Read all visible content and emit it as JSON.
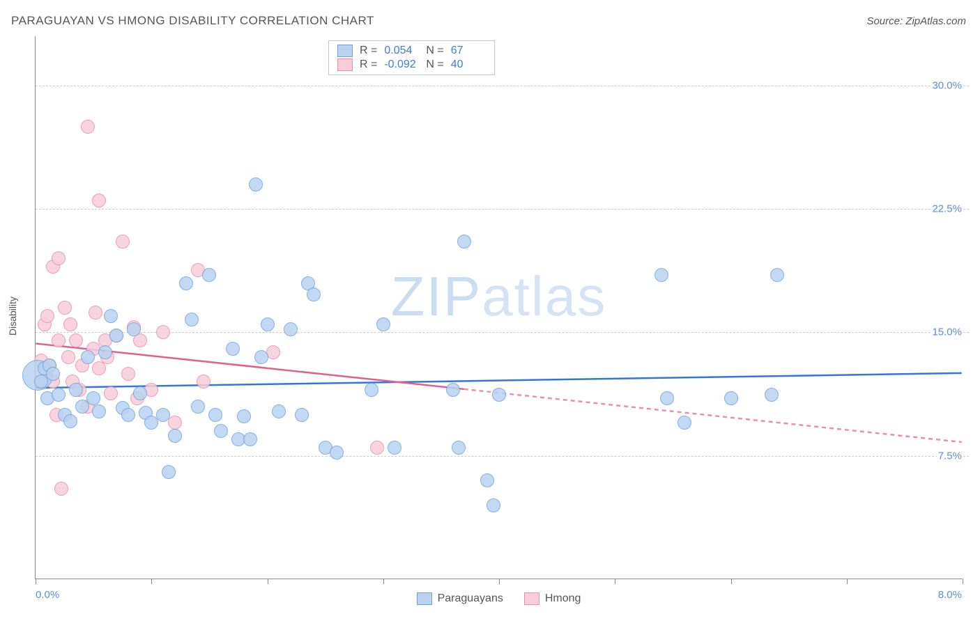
{
  "header": {
    "title": "PARAGUAYAN VS HMONG DISABILITY CORRELATION CHART",
    "source": "Source: ZipAtlas.com"
  },
  "ylabel": "Disability",
  "watermark": {
    "bold": "ZIP",
    "light": "atlas"
  },
  "chart": {
    "xlim": [
      0.0,
      8.0
    ],
    "ylim": [
      0.0,
      33.0
    ],
    "x_tick_positions": [
      0.0,
      1.0,
      2.0,
      3.0,
      4.0,
      5.0,
      6.0,
      7.0,
      8.0
    ],
    "x_tick_labels_shown": {
      "left": "0.0%",
      "right": "8.0%"
    },
    "y_gridlines": [
      7.5,
      15.0,
      22.5,
      30.0
    ],
    "y_tick_labels": [
      "7.5%",
      "15.0%",
      "22.5%",
      "30.0%"
    ],
    "background_color": "#ffffff",
    "grid_color": "#cccccc",
    "axis_color": "#888888",
    "label_color": "#5b8fd6",
    "point_radius": 10,
    "point_border_width": 1.2,
    "series": [
      {
        "name": "Paraguayans",
        "fill": "#b9d2f0",
        "stroke": "#6fa3e0",
        "line_color": "#2f78d6",
        "R": "0.054",
        "N": "67",
        "trend": {
          "x1": 0.0,
          "y1": 11.6,
          "x2": 8.0,
          "y2": 12.5,
          "solid_to_x": 8.0
        },
        "points": [
          {
            "x": 0.02,
            "y": 12.4,
            "r": 22
          },
          {
            "x": 0.05,
            "y": 12.0
          },
          {
            "x": 0.08,
            "y": 12.8
          },
          {
            "x": 0.1,
            "y": 11.0
          },
          {
            "x": 0.12,
            "y": 13.0
          },
          {
            "x": 0.15,
            "y": 12.5
          },
          {
            "x": 0.2,
            "y": 11.2
          },
          {
            "x": 0.25,
            "y": 10.0
          },
          {
            "x": 0.3,
            "y": 9.6
          },
          {
            "x": 0.35,
            "y": 11.5
          },
          {
            "x": 0.4,
            "y": 10.5
          },
          {
            "x": 0.45,
            "y": 13.5
          },
          {
            "x": 0.5,
            "y": 11.0
          },
          {
            "x": 0.55,
            "y": 10.2
          },
          {
            "x": 0.6,
            "y": 13.8
          },
          {
            "x": 0.65,
            "y": 16.0
          },
          {
            "x": 0.7,
            "y": 14.8
          },
          {
            "x": 0.75,
            "y": 10.4
          },
          {
            "x": 0.8,
            "y": 10.0
          },
          {
            "x": 0.85,
            "y": 15.2
          },
          {
            "x": 0.9,
            "y": 11.3
          },
          {
            "x": 0.95,
            "y": 10.1
          },
          {
            "x": 1.0,
            "y": 9.5
          },
          {
            "x": 1.1,
            "y": 10.0
          },
          {
            "x": 1.15,
            "y": 6.5
          },
          {
            "x": 1.2,
            "y": 8.7
          },
          {
            "x": 1.3,
            "y": 18.0
          },
          {
            "x": 1.35,
            "y": 15.8
          },
          {
            "x": 1.4,
            "y": 10.5
          },
          {
            "x": 1.5,
            "y": 18.5
          },
          {
            "x": 1.55,
            "y": 10.0
          },
          {
            "x": 1.6,
            "y": 9.0
          },
          {
            "x": 1.7,
            "y": 14.0
          },
          {
            "x": 1.75,
            "y": 8.5
          },
          {
            "x": 1.8,
            "y": 9.9
          },
          {
            "x": 1.85,
            "y": 8.5
          },
          {
            "x": 1.9,
            "y": 24.0
          },
          {
            "x": 1.95,
            "y": 13.5
          },
          {
            "x": 2.0,
            "y": 15.5
          },
          {
            "x": 2.1,
            "y": 10.2
          },
          {
            "x": 2.2,
            "y": 15.2
          },
          {
            "x": 2.3,
            "y": 10.0
          },
          {
            "x": 2.35,
            "y": 18.0
          },
          {
            "x": 2.4,
            "y": 17.3
          },
          {
            "x": 2.5,
            "y": 8.0
          },
          {
            "x": 2.6,
            "y": 7.7
          },
          {
            "x": 2.9,
            "y": 11.5
          },
          {
            "x": 3.0,
            "y": 15.5
          },
          {
            "x": 3.1,
            "y": 8.0
          },
          {
            "x": 3.6,
            "y": 11.5
          },
          {
            "x": 3.65,
            "y": 8.0
          },
          {
            "x": 3.7,
            "y": 20.5
          },
          {
            "x": 3.9,
            "y": 6.0
          },
          {
            "x": 3.95,
            "y": 4.5
          },
          {
            "x": 4.0,
            "y": 11.2
          },
          {
            "x": 5.4,
            "y": 18.5
          },
          {
            "x": 5.45,
            "y": 11.0
          },
          {
            "x": 5.6,
            "y": 9.5
          },
          {
            "x": 6.0,
            "y": 11.0
          },
          {
            "x": 6.35,
            "y": 11.2
          },
          {
            "x": 6.4,
            "y": 18.5
          }
        ]
      },
      {
        "name": "Hmong",
        "fill": "#f7cdda",
        "stroke": "#e88fb0",
        "line_color": "#e15f8f",
        "R": "-0.092",
        "N": "40",
        "trend": {
          "x1": 0.0,
          "y1": 14.3,
          "x2": 8.0,
          "y2": 8.3,
          "solid_to_x": 3.7
        },
        "points": [
          {
            "x": 0.05,
            "y": 13.3
          },
          {
            "x": 0.08,
            "y": 15.5
          },
          {
            "x": 0.1,
            "y": 16.0
          },
          {
            "x": 0.12,
            "y": 13.0
          },
          {
            "x": 0.15,
            "y": 12.0
          },
          {
            "x": 0.15,
            "y": 19.0
          },
          {
            "x": 0.18,
            "y": 10.0
          },
          {
            "x": 0.2,
            "y": 19.5
          },
          {
            "x": 0.2,
            "y": 14.5
          },
          {
            "x": 0.22,
            "y": 5.5
          },
          {
            "x": 0.25,
            "y": 16.5
          },
          {
            "x": 0.28,
            "y": 13.5
          },
          {
            "x": 0.3,
            "y": 15.5
          },
          {
            "x": 0.32,
            "y": 12.0
          },
          {
            "x": 0.35,
            "y": 14.5
          },
          {
            "x": 0.38,
            "y": 11.5
          },
          {
            "x": 0.4,
            "y": 13.0
          },
          {
            "x": 0.45,
            "y": 10.5
          },
          {
            "x": 0.45,
            "y": 27.5
          },
          {
            "x": 0.5,
            "y": 14.0
          },
          {
            "x": 0.52,
            "y": 16.2
          },
          {
            "x": 0.55,
            "y": 23.0
          },
          {
            "x": 0.55,
            "y": 12.8
          },
          {
            "x": 0.6,
            "y": 14.5
          },
          {
            "x": 0.62,
            "y": 13.5
          },
          {
            "x": 0.65,
            "y": 11.3
          },
          {
            "x": 0.7,
            "y": 14.8
          },
          {
            "x": 0.75,
            "y": 20.5
          },
          {
            "x": 0.8,
            "y": 12.5
          },
          {
            "x": 0.85,
            "y": 15.3
          },
          {
            "x": 0.88,
            "y": 11.0
          },
          {
            "x": 0.9,
            "y": 14.5
          },
          {
            "x": 1.0,
            "y": 11.5
          },
          {
            "x": 1.1,
            "y": 15.0
          },
          {
            "x": 1.2,
            "y": 9.5
          },
          {
            "x": 1.4,
            "y": 18.8
          },
          {
            "x": 1.45,
            "y": 12.0
          },
          {
            "x": 2.05,
            "y": 13.8
          },
          {
            "x": 2.95,
            "y": 8.0
          }
        ]
      }
    ]
  },
  "stats_labels": {
    "R": "R =",
    "N": "N ="
  },
  "legend": {
    "s1": "Paraguayans",
    "s2": "Hmong"
  }
}
